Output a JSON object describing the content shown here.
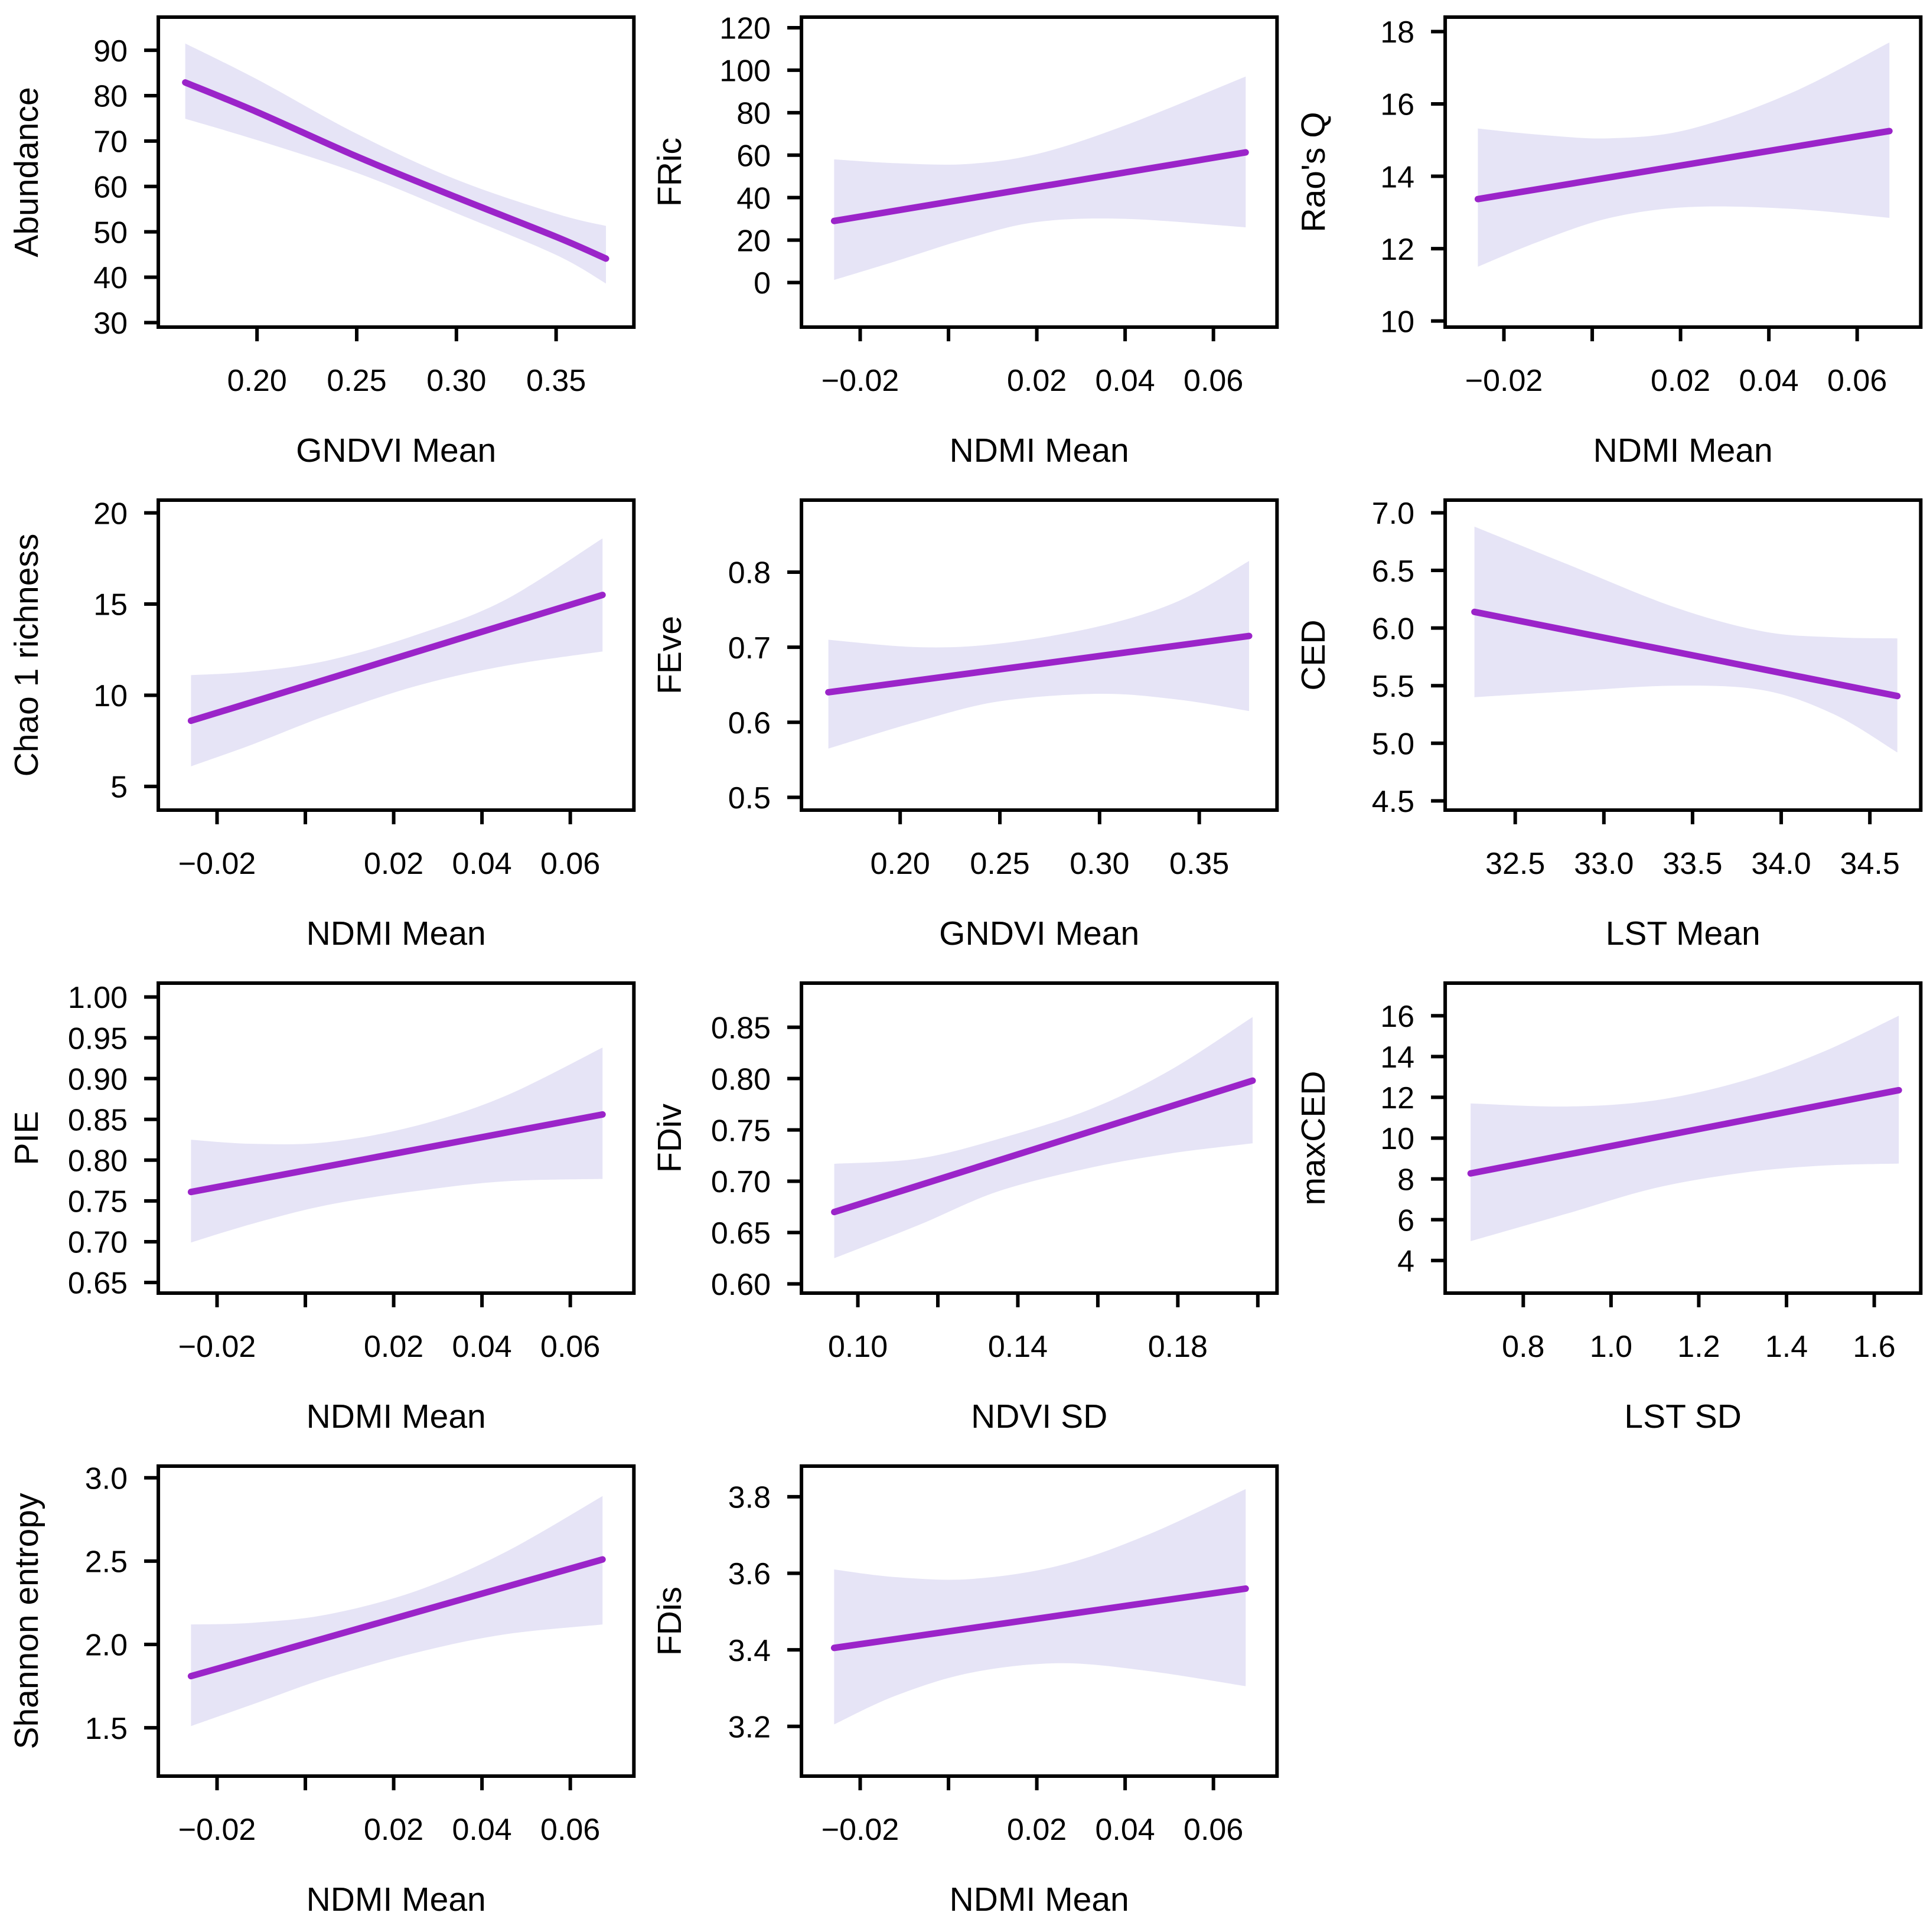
{
  "figure": {
    "background": "#ffffff",
    "line_color": "#9B24C9",
    "band_color": "#E6E4F6",
    "axis_color": "#000000"
  },
  "chart_data": [
    {
      "name": "abundance-vs-gndvi-mean",
      "type": "line",
      "ylabel": "Abundance",
      "xlabel": "GNDVI Mean",
      "xlim": [
        0.1505,
        0.389
      ],
      "ylim": [
        29,
        97.3
      ],
      "x_tick_values": [
        0.2,
        0.25,
        0.3,
        0.35
      ],
      "x_tick_labels": [
        "0.20",
        "0.25",
        "0.30",
        "0.35"
      ],
      "y_tick_values": [
        30,
        40,
        50,
        60,
        70,
        80,
        90
      ],
      "y_tick_labels": [
        "30",
        "40",
        "50",
        "60",
        "70",
        "80",
        "90"
      ],
      "line": {
        "x": [
          0.164,
          0.2,
          0.25,
          0.3,
          0.35,
          0.375
        ],
        "y": [
          82.9,
          76.4,
          66.6,
          57.6,
          48.9,
          44.1
        ]
      },
      "band": {
        "x": [
          0.164,
          0.2,
          0.25,
          0.3,
          0.35,
          0.375
        ],
        "upper": [
          91.5,
          83.6,
          71.6,
          61.5,
          54.0,
          51.3
        ],
        "lower": [
          74.9,
          70.2,
          63.0,
          54.1,
          44.9,
          38.6
        ]
      },
      "grid": false,
      "legend": null
    },
    {
      "name": "fric-vs-ndmi-mean",
      "type": "line",
      "ylabel": "FRic",
      "xlabel": "NDMI Mean",
      "xlim": [
        -0.0333,
        0.0744
      ],
      "ylim": [
        -21,
        125
      ],
      "x_tick_values": [
        -0.02,
        0.0,
        0.02,
        0.04,
        0.06
      ],
      "x_tick_labels": [
        "−0.02",
        "",
        "0.02",
        "0.04",
        "0.06"
      ],
      "y_tick_values": [
        0,
        20,
        40,
        60,
        80,
        100,
        120
      ],
      "y_tick_labels": [
        "0",
        "20",
        "40",
        "60",
        "80",
        "100",
        "120"
      ],
      "line": {
        "x": [
          -0.0259,
          0.0673
        ],
        "y": [
          29.0,
          61.3
        ]
      },
      "band": {
        "x": [
          -0.0259,
          -0.012,
          0.004,
          0.02,
          0.04,
          0.0673
        ],
        "upper": [
          58.0,
          56.2,
          55.8,
          60.5,
          74.0,
          97.0
        ],
        "lower": [
          1.2,
          10.0,
          20.5,
          28.5,
          30.0,
          26.0
        ]
      },
      "grid": false,
      "legend": null
    },
    {
      "name": "raos-q-vs-ndmi-mean",
      "type": "line",
      "ylabel": "Rao's Q",
      "xlabel": "NDMI Mean",
      "xlim": [
        -0.0333,
        0.0744
      ],
      "ylim": [
        9.83,
        18.4
      ],
      "x_tick_values": [
        -0.02,
        0.0,
        0.02,
        0.04,
        0.06
      ],
      "x_tick_labels": [
        "−0.02",
        "",
        "0.02",
        "0.04",
        "0.06"
      ],
      "y_tick_values": [
        10,
        12,
        14,
        16,
        18
      ],
      "y_tick_labels": [
        "10",
        "12",
        "14",
        "16",
        "18"
      ],
      "line": {
        "x": [
          -0.0259,
          0.0673
        ],
        "y": [
          13.37,
          15.25
        ]
      },
      "band": {
        "x": [
          -0.0259,
          -0.012,
          0.004,
          0.022,
          0.045,
          0.0673
        ],
        "upper": [
          15.32,
          15.15,
          15.05,
          15.3,
          16.3,
          17.7
        ],
        "lower": [
          11.5,
          12.2,
          12.85,
          13.15,
          13.1,
          12.85
        ]
      },
      "grid": false,
      "legend": null
    },
    {
      "name": "chao1-richness-vs-ndmi-mean",
      "type": "line",
      "ylabel": "Chao 1 richness",
      "xlabel": "NDMI Mean",
      "xlim": [
        -0.0333,
        0.0744
      ],
      "ylim": [
        3.7,
        20.7
      ],
      "x_tick_values": [
        -0.02,
        0.0,
        0.02,
        0.04,
        0.06
      ],
      "x_tick_labels": [
        "−0.02",
        "",
        "0.02",
        "0.04",
        "0.06"
      ],
      "y_tick_values": [
        5,
        10,
        15,
        20
      ],
      "y_tick_labels": [
        "5",
        "10",
        "15",
        "20"
      ],
      "line": {
        "x": [
          -0.0259,
          0.0673
        ],
        "y": [
          8.6,
          15.5
        ]
      },
      "band": {
        "x": [
          -0.0259,
          -0.012,
          0.005,
          0.025,
          0.045,
          0.0673
        ],
        "upper": [
          11.1,
          11.3,
          11.9,
          13.3,
          15.2,
          18.6
        ],
        "lower": [
          6.1,
          7.3,
          8.9,
          10.5,
          11.6,
          12.4
        ]
      },
      "grid": false,
      "legend": null
    },
    {
      "name": "feve-vs-gndvi-mean",
      "type": "line",
      "ylabel": "FEve",
      "xlabel": "GNDVI Mean",
      "xlim": [
        0.1505,
        0.389
      ],
      "ylim": [
        0.483,
        0.896
      ],
      "x_tick_values": [
        0.2,
        0.25,
        0.3,
        0.35
      ],
      "x_tick_labels": [
        "0.20",
        "0.25",
        "0.30",
        "0.35"
      ],
      "y_tick_values": [
        0.5,
        0.6,
        0.7,
        0.8
      ],
      "y_tick_labels": [
        "0.5",
        "0.6",
        "0.7",
        "0.8"
      ],
      "line": {
        "x": [
          0.164,
          0.375
        ],
        "y": [
          0.64,
          0.715
        ]
      },
      "band": {
        "x": [
          0.164,
          0.21,
          0.25,
          0.3,
          0.34,
          0.375
        ],
        "upper": [
          0.71,
          0.7,
          0.705,
          0.728,
          0.762,
          0.815
        ],
        "lower": [
          0.565,
          0.602,
          0.628,
          0.638,
          0.63,
          0.615
        ]
      },
      "grid": false,
      "legend": null
    },
    {
      "name": "ced-vs-lst-mean",
      "type": "line",
      "ylabel": "CED",
      "xlabel": "LST Mean",
      "xlim": [
        32.105,
        34.787
      ],
      "ylim": [
        4.42,
        7.11
      ],
      "x_tick_values": [
        32.5,
        33.0,
        33.5,
        34.0,
        34.5
      ],
      "x_tick_labels": [
        "32.5",
        "33.0",
        "33.5",
        "34.0",
        "34.5"
      ],
      "y_tick_values": [
        4.5,
        5.0,
        5.5,
        6.0,
        6.5,
        7.0
      ],
      "y_tick_labels": [
        "4.5",
        "5.0",
        "5.5",
        "6.0",
        "6.5",
        "7.0"
      ],
      "line": {
        "x": [
          32.27,
          34.655
        ],
        "y": [
          6.14,
          5.41
        ]
      },
      "band": {
        "x": [
          32.27,
          32.8,
          33.4,
          33.9,
          34.3,
          34.655
        ],
        "upper": [
          6.88,
          6.55,
          6.18,
          5.97,
          5.92,
          5.91
        ],
        "lower": [
          5.4,
          5.45,
          5.5,
          5.46,
          5.25,
          4.92
        ]
      },
      "grid": false,
      "legend": null
    },
    {
      "name": "pie-vs-ndmi-mean",
      "type": "line",
      "ylabel": "PIE",
      "xlabel": "NDMI Mean",
      "xlim": [
        -0.0333,
        0.0744
      ],
      "ylim": [
        0.637,
        1.017
      ],
      "x_tick_values": [
        -0.02,
        0.0,
        0.02,
        0.04,
        0.06
      ],
      "x_tick_labels": [
        "−0.02",
        "",
        "0.02",
        "0.04",
        "0.06"
      ],
      "y_tick_values": [
        0.65,
        0.7,
        0.75,
        0.8,
        0.85,
        0.9,
        0.95,
        1.0
      ],
      "y_tick_labels": [
        "0.65",
        "0.70",
        "0.75",
        "0.80",
        "0.85",
        "0.90",
        "0.95",
        "1.00"
      ],
      "line": {
        "x": [
          -0.0259,
          0.0673
        ],
        "y": [
          0.761,
          0.856
        ]
      },
      "band": {
        "x": [
          -0.0259,
          -0.012,
          0.005,
          0.025,
          0.045,
          0.0673
        ],
        "upper": [
          0.825,
          0.82,
          0.822,
          0.842,
          0.878,
          0.938
        ],
        "lower": [
          0.699,
          0.722,
          0.745,
          0.762,
          0.774,
          0.777
        ]
      },
      "grid": false,
      "legend": null
    },
    {
      "name": "fdiv-vs-ndvi-sd",
      "type": "line",
      "ylabel": "FDiv",
      "xlabel": "NDVI SD",
      "xlim": [
        0.0859,
        0.2048
      ],
      "ylim": [
        0.591,
        0.893
      ],
      "x_tick_values": [
        0.1,
        0.12,
        0.14,
        0.16,
        0.18,
        0.2
      ],
      "x_tick_labels": [
        "0.10",
        "",
        "0.14",
        "",
        "0.18",
        ""
      ],
      "y_tick_values": [
        0.6,
        0.65,
        0.7,
        0.75,
        0.8,
        0.85
      ],
      "y_tick_labels": [
        "0.60",
        "0.65",
        "0.70",
        "0.75",
        "0.80",
        "0.85"
      ],
      "line": {
        "x": [
          0.0941,
          0.1987
        ],
        "y": [
          0.67,
          0.798
        ]
      },
      "band": {
        "x": [
          0.0941,
          0.115,
          0.135,
          0.158,
          0.178,
          0.1987
        ],
        "upper": [
          0.717,
          0.722,
          0.741,
          0.77,
          0.808,
          0.86
        ],
        "lower": [
          0.625,
          0.657,
          0.69,
          0.713,
          0.727,
          0.737
        ]
      },
      "grid": false,
      "legend": null
    },
    {
      "name": "maxced-vs-lst-sd",
      "type": "line",
      "ylabel": "maxCED",
      "xlabel": "LST SD",
      "xlim": [
        0.622,
        1.706
      ],
      "ylim": [
        2.4,
        17.6
      ],
      "x_tick_values": [
        0.8,
        1.0,
        1.2,
        1.4,
        1.6
      ],
      "x_tick_labels": [
        "0.8",
        "1.0",
        "1.2",
        "1.4",
        "1.6"
      ],
      "y_tick_values": [
        4,
        6,
        8,
        10,
        12,
        14,
        16
      ],
      "y_tick_labels": [
        "4",
        "6",
        "8",
        "10",
        "12",
        "14",
        "16"
      ],
      "line": {
        "x": [
          0.68,
          1.656
        ],
        "y": [
          8.27,
          12.35
        ]
      },
      "band": {
        "x": [
          0.68,
          0.9,
          1.1,
          1.3,
          1.48,
          1.656
        ],
        "upper": [
          11.7,
          11.55,
          11.85,
          12.8,
          14.2,
          16.0
        ],
        "lower": [
          4.95,
          6.3,
          7.55,
          8.3,
          8.65,
          8.75
        ]
      },
      "grid": false,
      "legend": null
    },
    {
      "name": "shannon-entropy-vs-ndmi-mean",
      "type": "line",
      "ylabel": "Shannon entropy",
      "xlabel": "NDMI Mean",
      "xlim": [
        -0.0333,
        0.0744
      ],
      "ylim": [
        1.21,
        3.07
      ],
      "x_tick_values": [
        -0.02,
        0.0,
        0.02,
        0.04,
        0.06
      ],
      "x_tick_labels": [
        "−0.02",
        "",
        "0.02",
        "0.04",
        "0.06"
      ],
      "y_tick_values": [
        1.5,
        2.0,
        2.5,
        3.0
      ],
      "y_tick_labels": [
        "1.5",
        "2.0",
        "2.5",
        "3.0"
      ],
      "line": {
        "x": [
          -0.0259,
          0.0673
        ],
        "y": [
          1.81,
          2.51
        ]
      },
      "band": {
        "x": [
          -0.0259,
          -0.012,
          0.005,
          0.025,
          0.045,
          0.0673
        ],
        "upper": [
          2.12,
          2.13,
          2.18,
          2.32,
          2.55,
          2.89
        ],
        "lower": [
          1.51,
          1.64,
          1.8,
          1.95,
          2.06,
          2.12
        ]
      },
      "grid": false,
      "legend": null
    },
    {
      "name": "fdis-vs-ndmi-mean",
      "type": "line",
      "ylabel": "FDis",
      "xlabel": "NDMI Mean",
      "xlim": [
        -0.0333,
        0.0744
      ],
      "ylim": [
        3.07,
        3.88
      ],
      "x_tick_values": [
        -0.02,
        0.0,
        0.02,
        0.04,
        0.06
      ],
      "x_tick_labels": [
        "−0.02",
        "",
        "0.02",
        "0.04",
        "0.06"
      ],
      "y_tick_values": [
        3.2,
        3.4,
        3.6,
        3.8
      ],
      "y_tick_labels": [
        "3.2",
        "3.4",
        "3.6",
        "3.8"
      ],
      "line": {
        "x": [
          -0.0259,
          0.0673
        ],
        "y": [
          3.405,
          3.56
        ]
      },
      "band": {
        "x": [
          -0.0259,
          -0.012,
          0.005,
          0.025,
          0.045,
          0.0673
        ],
        "upper": [
          3.61,
          3.59,
          3.585,
          3.62,
          3.7,
          3.82
        ],
        "lower": [
          3.205,
          3.28,
          3.34,
          3.365,
          3.345,
          3.305
        ]
      },
      "grid": false,
      "legend": null
    }
  ]
}
